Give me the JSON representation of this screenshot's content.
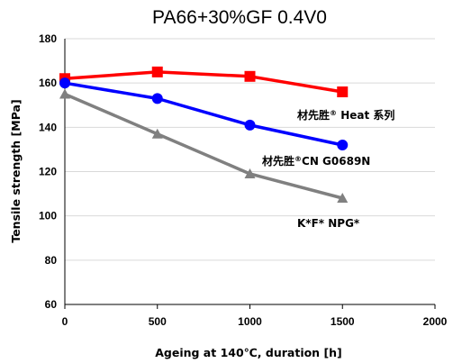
{
  "chart_data": {
    "type": "line",
    "title": "PA66+30%GF 0.4V0",
    "xlabel": "Ageing at 140℃, duration [h]",
    "ylabel": "Tensile strength [MPa]",
    "xlim": [
      0,
      2000
    ],
    "ylim": [
      60,
      180
    ],
    "xticks": [
      "0",
      "500",
      "1000",
      "1500",
      "2000"
    ],
    "yticks": [
      "60",
      "80",
      "100",
      "120",
      "140",
      "160",
      "180"
    ],
    "grid": "horizontal",
    "legend": "none",
    "series": [
      {
        "label_parts": [
          "材先胜",
          "®",
          " Heat 系列"
        ],
        "color": "#ff0000",
        "marker": "square",
        "x": [
          0,
          500,
          1000,
          1500
        ],
        "y": [
          162,
          165,
          163,
          156
        ]
      },
      {
        "label_parts": [
          "材先胜",
          "®",
          "CN G0689N"
        ],
        "color": "#0000ff",
        "marker": "circle",
        "x": [
          0,
          500,
          1000,
          1500
        ],
        "y": [
          160,
          153,
          141,
          132
        ]
      },
      {
        "label_parts": [
          "K*F*  NPG*"
        ],
        "color": "#808080",
        "marker": "triangle",
        "x": [
          0,
          500,
          1000,
          1500
        ],
        "y": [
          155,
          137,
          119,
          108
        ]
      }
    ]
  }
}
